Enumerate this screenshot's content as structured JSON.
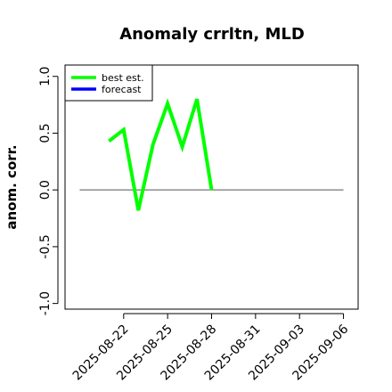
{
  "chart_data": {
    "type": "line",
    "title": "Anomaly crrltn, MLD",
    "xlabel": "",
    "ylabel": "anom. corr.",
    "ylim": [
      -1.05,
      1.1
    ],
    "xlim": [
      "2025-08-18",
      "2025-09-07"
    ],
    "yticks": [
      "-1.0",
      "-0.5",
      "0.0",
      "0.5",
      "1.0"
    ],
    "ytick_values": [
      -1.0,
      -0.5,
      0.0,
      0.5,
      1.0
    ],
    "xticks": [
      "2025-08-22",
      "2025-08-25",
      "2025-08-28",
      "2025-08-31",
      "2025-09-03",
      "2025-09-06"
    ],
    "highlighted_xtick": "2025-08-28",
    "highlight_color": "#228B22",
    "series": [
      {
        "name": "best est.",
        "color": "#00ff00",
        "x": [
          "2025-08-21",
          "2025-08-22",
          "2025-08-23",
          "2025-08-24",
          "2025-08-25",
          "2025-08-26",
          "2025-08-27",
          "2025-08-28"
        ],
        "y": [
          0.43,
          0.53,
          -0.18,
          0.4,
          0.76,
          0.38,
          0.8,
          0.0
        ]
      },
      {
        "name": "forecast",
        "color": "#0000ff",
        "x": [],
        "y": []
      }
    ],
    "reference_line": {
      "y": 0.0,
      "x_from": "2025-08-19",
      "x_to": "2025-09-06",
      "color": "#555555"
    },
    "legend": {
      "position": "top-left",
      "entries": [
        "best est.",
        "forecast"
      ]
    },
    "grid": false
  }
}
